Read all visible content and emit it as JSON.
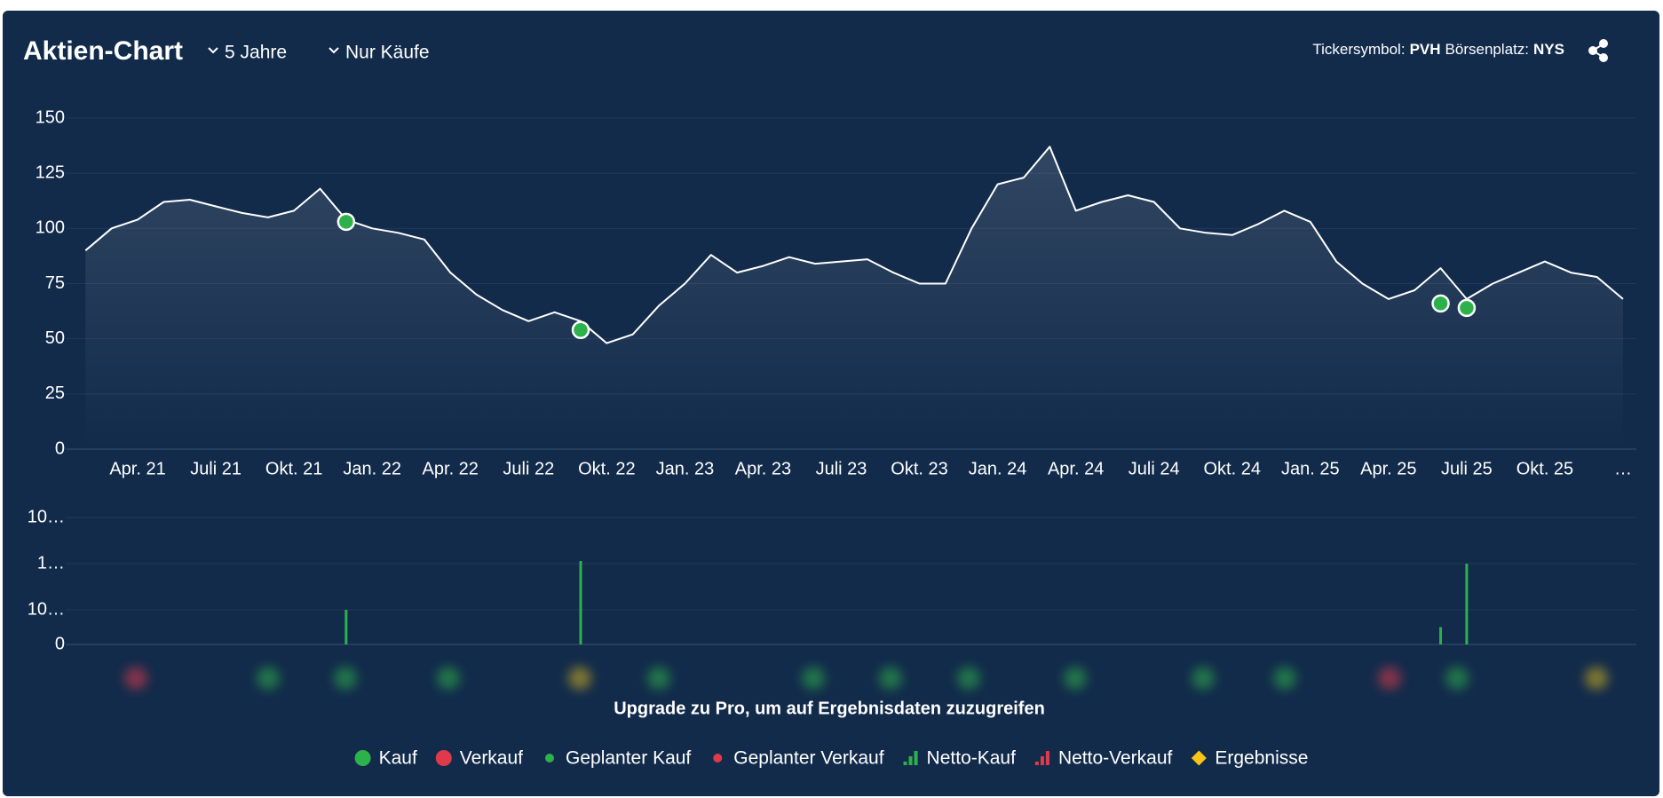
{
  "header": {
    "title": "Aktien-Chart",
    "period": "5 Jahre",
    "filter": "Nur Käufe",
    "ticker_label": "Tickersymbol:",
    "ticker": "PVH",
    "exchange_label": "Börsenplatz:",
    "exchange": "NYS"
  },
  "chart_data": [
    {
      "type": "line",
      "x": [
        "2021-02",
        "2021-03",
        "2021-04",
        "2021-05",
        "2021-06",
        "2021-07",
        "2021-08",
        "2021-09",
        "2021-10",
        "2021-11",
        "2021-12",
        "2022-01",
        "2022-02",
        "2022-03",
        "2022-04",
        "2022-05",
        "2022-06",
        "2022-07",
        "2022-08",
        "2022-09",
        "2022-10",
        "2022-11",
        "2022-12",
        "2023-01",
        "2023-02",
        "2023-03",
        "2023-04",
        "2023-05",
        "2023-06",
        "2023-07",
        "2023-08",
        "2023-09",
        "2023-10",
        "2023-11",
        "2023-12",
        "2024-01",
        "2024-02",
        "2024-03",
        "2024-04",
        "2024-05",
        "2024-06",
        "2024-07",
        "2024-08",
        "2024-09",
        "2024-10",
        "2024-11",
        "2024-12",
        "2025-01",
        "2025-02",
        "2025-03",
        "2025-04",
        "2025-05",
        "2025-06",
        "2025-07",
        "2025-08",
        "2025-09",
        "2025-10",
        "2025-11",
        "2025-12",
        "2026-01"
      ],
      "values": [
        90,
        100,
        104,
        112,
        113,
        110,
        107,
        105,
        108,
        118,
        104,
        100,
        98,
        95,
        80,
        70,
        63,
        58,
        62,
        58,
        48,
        52,
        65,
        75,
        88,
        80,
        83,
        87,
        84,
        85,
        86,
        80,
        75,
        75,
        100,
        120,
        123,
        137,
        108,
        112,
        115,
        112,
        100,
        98,
        97,
        102,
        108,
        103,
        85,
        75,
        68,
        72,
        82,
        68,
        75,
        80,
        85,
        80,
        78,
        68
      ],
      "color": "#ffffff",
      "buys": {
        "x": [
          "2021-12",
          "2022-09",
          "2025-06",
          "2025-07"
        ],
        "values": [
          103,
          54,
          66,
          64
        ],
        "color": "#2db14a"
      },
      "xlim": [
        "2021-01",
        "2026-01"
      ],
      "xticks": [
        {
          "value": "2021-04",
          "label": "Apr. 21"
        },
        {
          "value": "2021-07",
          "label": "Juli 21"
        },
        {
          "value": "2021-10",
          "label": "Okt. 21"
        },
        {
          "value": "2022-01",
          "label": "Jan. 22"
        },
        {
          "value": "2022-04",
          "label": "Apr. 22"
        },
        {
          "value": "2022-07",
          "label": "Juli 22"
        },
        {
          "value": "2022-10",
          "label": "Okt. 22"
        },
        {
          "value": "2023-01",
          "label": "Jan. 23"
        },
        {
          "value": "2023-04",
          "label": "Apr. 23"
        },
        {
          "value": "2023-07",
          "label": "Juli 23"
        },
        {
          "value": "2023-10",
          "label": "Okt. 23"
        },
        {
          "value": "2024-01",
          "label": "Jan. 24"
        },
        {
          "value": "2024-04",
          "label": "Apr. 24"
        },
        {
          "value": "2024-07",
          "label": "Juli 24"
        },
        {
          "value": "2024-10",
          "label": "Okt. 24"
        },
        {
          "value": "2025-01",
          "label": "Jan. 25"
        },
        {
          "value": "2025-04",
          "label": "Apr. 25"
        },
        {
          "value": "2025-07",
          "label": "Juli 25"
        },
        {
          "value": "2025-10",
          "label": "Okt. 25"
        },
        {
          "value": "2026-01",
          "label": "…"
        }
      ],
      "ylim": [
        0,
        150
      ],
      "yticks": [
        0,
        25,
        50,
        75,
        100,
        125,
        150
      ],
      "grid": true
    },
    {
      "type": "bar",
      "x": [
        "2021-12",
        "2022-09",
        "2025-06",
        "2025-07"
      ],
      "values": [
        10000,
        1300000,
        5000,
        1000000
      ],
      "color": "#2db14a",
      "xlim": [
        "2021-01",
        "2026-01"
      ],
      "yscale": "symlog",
      "ylim": [
        0,
        100000000
      ],
      "yticks": [
        0,
        {
          "value": 10000,
          "label": "10…"
        },
        {
          "value": 1000000,
          "label": "1…"
        },
        {
          "value": 100000000,
          "label": "10…"
        }
      ],
      "grid": true
    }
  ],
  "upgrade_note": "Upgrade zu Pro, um auf Ergebnisdaten zuzugreifen",
  "legend": [
    {
      "name": "Kauf",
      "color": "#2db14a",
      "marker": "dot"
    },
    {
      "name": "Verkauf",
      "color": "#e03a4a",
      "marker": "dot"
    },
    {
      "name": "Geplanter Kauf",
      "color": "#2db14a",
      "marker": "small-dot"
    },
    {
      "name": "Geplanter Verkauf",
      "color": "#e03a4a",
      "marker": "small-dot"
    },
    {
      "name": "Netto-Kauf",
      "color": "#2db14a",
      "marker": "bars"
    },
    {
      "name": "Netto-Verkauf",
      "color": "#e03a4a",
      "marker": "bars"
    },
    {
      "name": "Ergebnisse",
      "color": "#f5c518",
      "marker": "diamond"
    }
  ]
}
